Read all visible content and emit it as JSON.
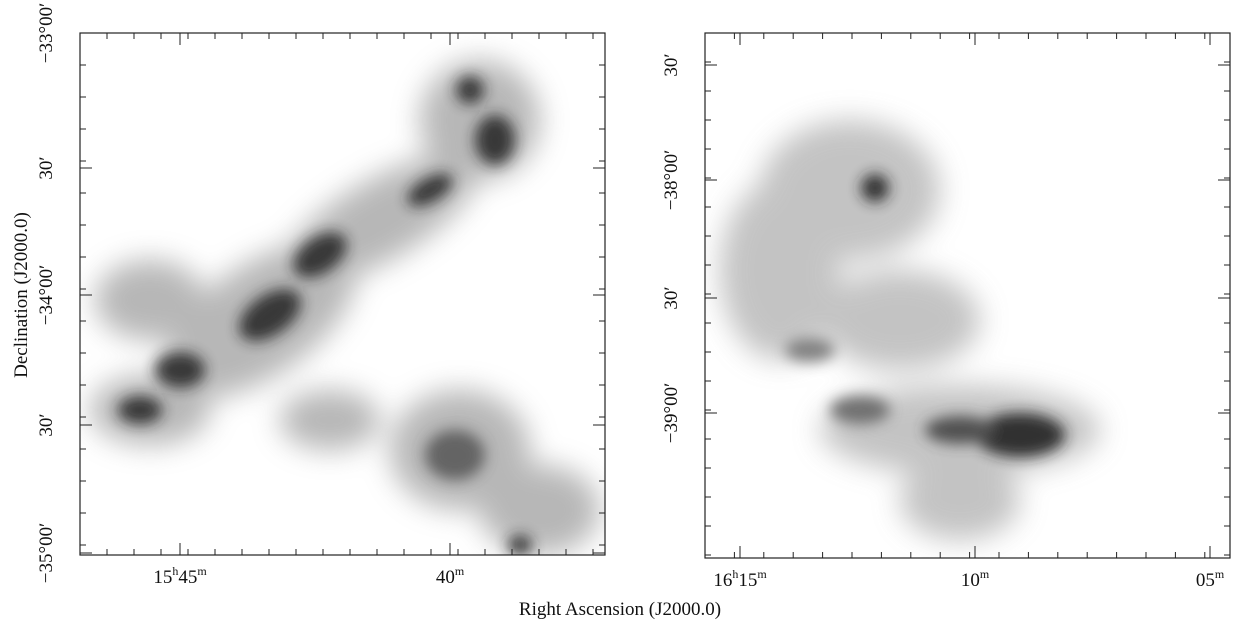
{
  "x_axis_label": "Right Ascension (J2000.0)",
  "y_axis_label": "Declination (J2000.0)",
  "panels": [
    {
      "y_tick_labels": [
        "−33°00′",
        "30′",
        "−34°00′",
        "30′",
        "−35°00′"
      ],
      "x_tick_labels": [
        [
          "15",
          "h",
          "45",
          "m"
        ],
        [
          "40",
          "m"
        ]
      ]
    },
    {
      "y_tick_labels": [
        "30′",
        "−38°00′",
        "30′",
        "−39°00′"
      ],
      "x_tick_labels": [
        [
          "16",
          "h",
          "15",
          "m"
        ],
        [
          "10",
          "m"
        ],
        [
          "05",
          "m"
        ]
      ]
    }
  ]
}
